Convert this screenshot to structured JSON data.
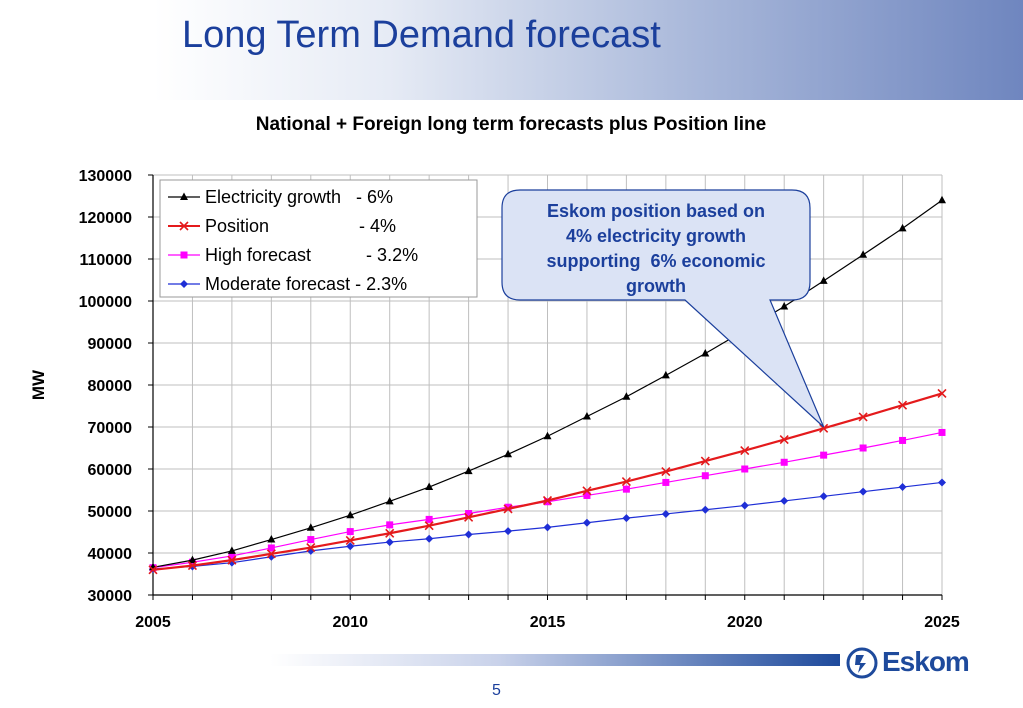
{
  "slide": {
    "title": "Long Term Demand forecast",
    "page_number": "5",
    "logo_text": "Eskom",
    "colors": {
      "title": "#1b3f9c",
      "brand": "#1e4a9c"
    }
  },
  "callout": {
    "lines": [
      "Eskom position based on",
      "4% electricity growth",
      "supporting  6% economic",
      "growth"
    ],
    "fill": "#dbe3f5",
    "text_color": "#1b3f9c",
    "pointer_to": {
      "x": 2022,
      "y": 70000
    }
  },
  "chart_data": {
    "type": "line",
    "title": "National + Foreign long term forecasts plus Position line",
    "xlabel": "",
    "ylabel": "MW",
    "xlim": [
      2005,
      2025
    ],
    "ylim": [
      30000,
      130000
    ],
    "x_ticks": [
      2005,
      2010,
      2015,
      2020,
      2025
    ],
    "y_ticks": [
      30000,
      40000,
      50000,
      60000,
      70000,
      80000,
      90000,
      100000,
      110000,
      120000,
      130000
    ],
    "grid": true,
    "legend": "top-left",
    "x": [
      2005,
      2006,
      2007,
      2008,
      2009,
      2010,
      2011,
      2012,
      2013,
      2014,
      2015,
      2016,
      2017,
      2018,
      2019,
      2020,
      2021,
      2022,
      2023,
      2024,
      2025
    ],
    "series": [
      {
        "name": "Electricity growth   - 6%",
        "color": "#000000",
        "marker": "triangle",
        "values": [
          36600,
          38300,
          40500,
          43200,
          46000,
          49000,
          52300,
          55700,
          59500,
          63500,
          67800,
          72500,
          77200,
          82300,
          87500,
          93000,
          98700,
          104800,
          111000,
          117300,
          124000
        ]
      },
      {
        "name": "Position                  - 4%",
        "color": "#e41a1c",
        "marker": "x",
        "values": [
          36000,
          37000,
          38300,
          39800,
          41300,
          43000,
          44700,
          46500,
          48500,
          50500,
          52500,
          54800,
          57000,
          59400,
          61900,
          64400,
          67000,
          69700,
          72400,
          75200,
          78000
        ]
      },
      {
        "name": "High forecast           - 3.2%",
        "color": "#ff00ff",
        "marker": "square",
        "values": [
          36500,
          37800,
          39300,
          41200,
          43200,
          45100,
          46700,
          48000,
          49400,
          50900,
          52200,
          53700,
          55200,
          56800,
          58400,
          60000,
          61600,
          63300,
          65000,
          66800,
          68700
        ]
      },
      {
        "name": "Moderate forecast - 2.3%",
        "color": "#1f2fd6",
        "marker": "diamond",
        "values": [
          36200,
          36800,
          37700,
          39100,
          40500,
          41600,
          42600,
          43400,
          44400,
          45200,
          46100,
          47200,
          48300,
          49300,
          50300,
          51300,
          52400,
          53500,
          54600,
          55700,
          56800
        ]
      }
    ]
  }
}
